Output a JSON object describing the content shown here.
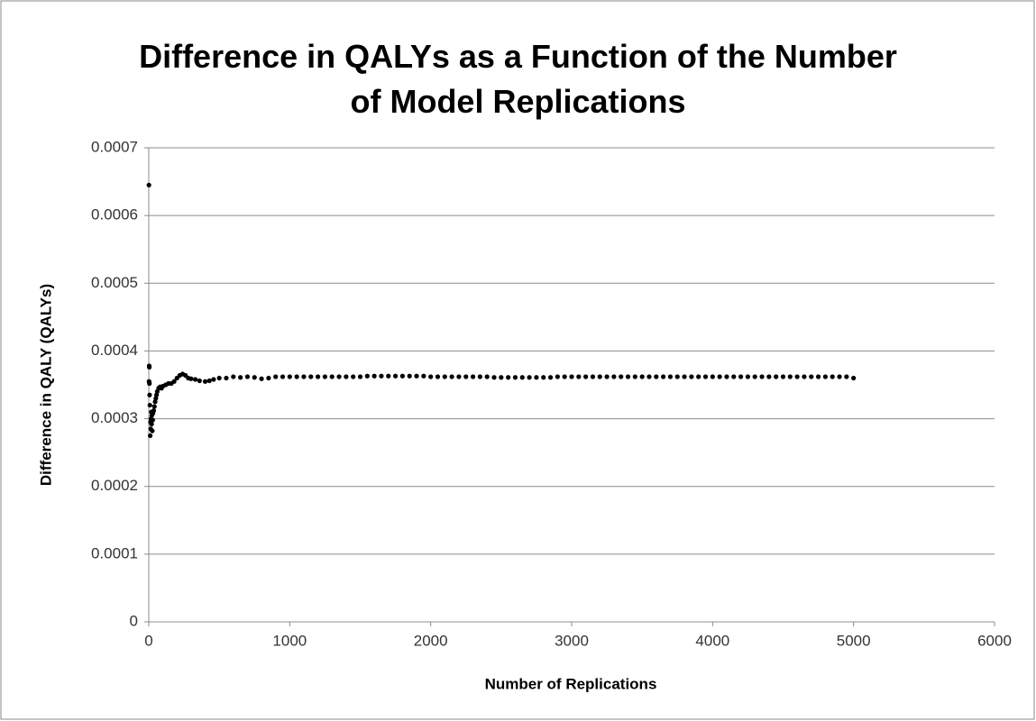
{
  "chart_data": {
    "type": "scatter",
    "title": "Difference in QALYs as a Function of the Number\nof Model Replications",
    "xlabel": "Number of Replications",
    "ylabel": "Difference in QALY (QALYs)",
    "color": "#000000",
    "grid": true,
    "xlim": [
      0,
      6000
    ],
    "xticks": [
      0,
      1000,
      2000,
      3000,
      4000,
      5000,
      6000
    ],
    "ylim": [
      0,
      0.0007
    ],
    "yticks": [
      0,
      0.0001,
      0.0002,
      0.0003,
      0.0004,
      0.0005,
      0.0006,
      0.0007
    ],
    "x": [
      1,
      2,
      3,
      4,
      5,
      6,
      8,
      10,
      12,
      14,
      16,
      18,
      20,
      22,
      25,
      28,
      30,
      35,
      40,
      45,
      50,
      55,
      60,
      70,
      80,
      90,
      100,
      120,
      140,
      160,
      180,
      200,
      220,
      240,
      260,
      280,
      300,
      330,
      360,
      400,
      430,
      460,
      500,
      550,
      600,
      650,
      700,
      750,
      800,
      850,
      900,
      950,
      1000,
      1050,
      1100,
      1150,
      1200,
      1250,
      1300,
      1350,
      1400,
      1450,
      1500,
      1550,
      1600,
      1650,
      1700,
      1750,
      1800,
      1850,
      1900,
      1950,
      2000,
      2050,
      2100,
      2150,
      2200,
      2250,
      2300,
      2350,
      2400,
      2450,
      2500,
      2550,
      2600,
      2650,
      2700,
      2750,
      2800,
      2850,
      2900,
      2950,
      3000,
      3050,
      3100,
      3150,
      3200,
      3250,
      3300,
      3350,
      3400,
      3450,
      3500,
      3550,
      3600,
      3650,
      3700,
      3750,
      3800,
      3850,
      3900,
      3950,
      4000,
      4050,
      4100,
      4150,
      4200,
      4250,
      4300,
      4350,
      4400,
      4450,
      4500,
      4550,
      4600,
      4650,
      4700,
      4750,
      4800,
      4850,
      4900,
      4950,
      5000
    ],
    "values": [
      0.000645,
      0.000355,
      0.000378,
      0.000376,
      0.000352,
      0.000335,
      0.00032,
      0.000275,
      0.000295,
      0.000285,
      0.0003,
      0.00031,
      0.000292,
      0.000305,
      0.000282,
      0.000298,
      0.000308,
      0.000312,
      0.000318,
      0.000325,
      0.00033,
      0.000335,
      0.00034,
      0.000345,
      0.000347,
      0.000345,
      0.000348,
      0.00035,
      0.000352,
      0.000352,
      0.000355,
      0.00036,
      0.000364,
      0.000366,
      0.000364,
      0.00036,
      0.000359,
      0.000358,
      0.000356,
      0.000355,
      0.000356,
      0.000358,
      0.00036,
      0.00036,
      0.000362,
      0.000361,
      0.000362,
      0.000361,
      0.000359,
      0.00036,
      0.000362,
      0.000362,
      0.000362,
      0.000362,
      0.000362,
      0.000362,
      0.000362,
      0.000362,
      0.000362,
      0.000362,
      0.000362,
      0.000362,
      0.000362,
      0.000363,
      0.000363,
      0.000363,
      0.000363,
      0.000363,
      0.000363,
      0.000363,
      0.000363,
      0.000363,
      0.000362,
      0.000362,
      0.000362,
      0.000362,
      0.000362,
      0.000362,
      0.000362,
      0.000362,
      0.000362,
      0.000361,
      0.000361,
      0.000361,
      0.000361,
      0.000361,
      0.000361,
      0.000361,
      0.000361,
      0.000361,
      0.000362,
      0.000362,
      0.000362,
      0.000362,
      0.000362,
      0.000362,
      0.000362,
      0.000362,
      0.000362,
      0.000362,
      0.000362,
      0.000362,
      0.000362,
      0.000362,
      0.000362,
      0.000362,
      0.000362,
      0.000362,
      0.000362,
      0.000362,
      0.000362,
      0.000362,
      0.000362,
      0.000362,
      0.000362,
      0.000362,
      0.000362,
      0.000362,
      0.000362,
      0.000362,
      0.000362,
      0.000362,
      0.000362,
      0.000362,
      0.000362,
      0.000362,
      0.000362,
      0.000362,
      0.000362,
      0.000362,
      0.000362,
      0.000362,
      0.00036
    ]
  }
}
